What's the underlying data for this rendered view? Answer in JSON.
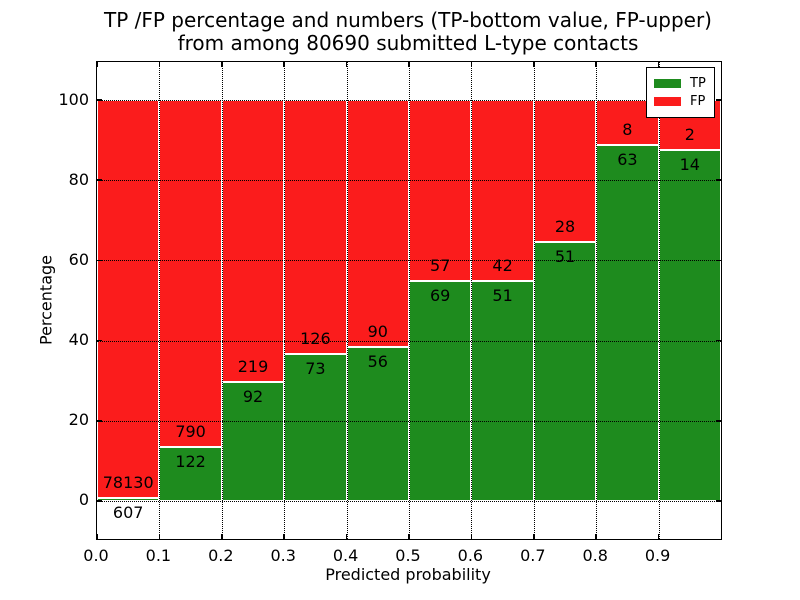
{
  "figure": {
    "title_lines": [
      "TP /FP percentage and numbers (TP-bottom value, FP-upper)",
      "from among 80690 submitted L-type contacts"
    ]
  },
  "chart_data": {
    "type": "bar",
    "stacked": true,
    "normalized": "each bin scaled to 100%, annotated with raw counts",
    "title": "TP /FP percentage and numbers (TP-bottom value, FP-upper)\nfrom among 80690 submitted L-type contacts",
    "total_contacts": 80690,
    "xlabel": "Predicted probability",
    "ylabel": "Percentage",
    "xlim": [
      0.0,
      1.0
    ],
    "ylim": [
      -9.5,
      109.5
    ],
    "bin_width": 0.1,
    "x_tick_labels": [
      "0.0",
      "0.1",
      "0.2",
      "0.3",
      "0.4",
      "0.5",
      "0.6",
      "0.7",
      "0.8",
      "0.9"
    ],
    "x_tick_values": [
      0.0,
      0.1,
      0.2,
      0.3,
      0.4,
      0.5,
      0.6,
      0.7,
      0.8,
      0.9
    ],
    "y_ticks": [
      0,
      20,
      40,
      60,
      80,
      100
    ],
    "grid": "dotted, drawn above bars",
    "bin_starts": [
      0.0,
      0.1,
      0.2,
      0.3,
      0.4,
      0.5,
      0.6,
      0.7,
      0.8,
      0.9
    ],
    "series": [
      {
        "name": "TP",
        "color": "#1e8b1e",
        "counts": [
          607,
          122,
          92,
          73,
          56,
          69,
          51,
          51,
          63,
          14
        ]
      },
      {
        "name": "FP",
        "color": "#fb1c1c",
        "counts": [
          78130,
          790,
          219,
          126,
          90,
          57,
          42,
          28,
          8,
          2
        ]
      }
    ],
    "tp_percent_of_bin": [
      0.77,
      13.38,
      29.58,
      36.68,
      38.36,
      54.76,
      54.84,
      64.56,
      88.73,
      87.5
    ],
    "legend": {
      "position": "upper right",
      "entries": [
        "TP",
        "FP"
      ]
    },
    "annotation_rule": "FP count printed just above TP/FP boundary, TP count just below"
  }
}
